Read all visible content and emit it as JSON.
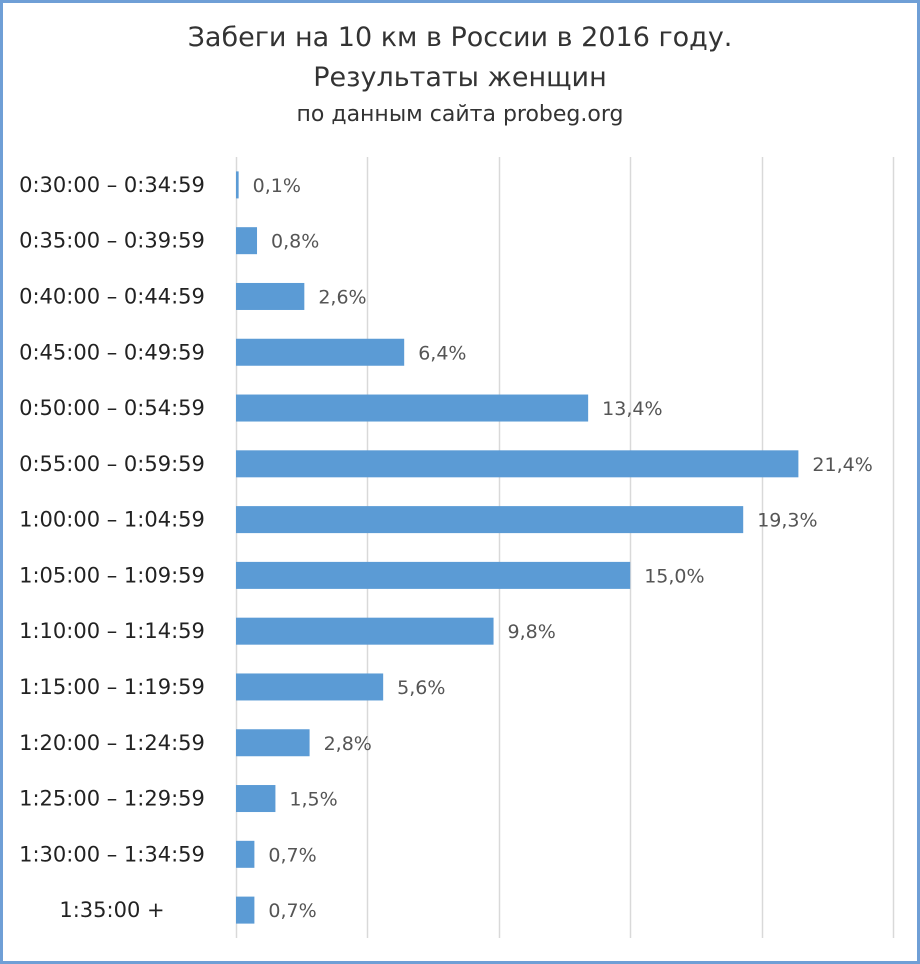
{
  "chart_data": {
    "type": "bar",
    "orientation": "horizontal",
    "title": "Забеги на 10 км в России в 2016 году.",
    "title_line2": "Результаты женщин",
    "subtitle": "по данным сайта probeg.org",
    "categories": [
      "0:30:00 – 0:34:59",
      "0:35:00 – 0:39:59",
      "0:40:00 – 0:44:59",
      "0:45:00 – 0:49:59",
      "0:50:00 – 0:54:59",
      "0:55:00 – 0:59:59",
      "1:00:00 – 1:04:59",
      "1:05:00 – 1:09:59",
      "1:10:00 – 1:14:59",
      "1:15:00 – 1:19:59",
      "1:20:00 – 1:24:59",
      "1:25:00 – 1:29:59",
      "1:30:00 – 1:34:59",
      "1:35:00 +"
    ],
    "values": [
      0.1,
      0.8,
      2.6,
      6.4,
      13.4,
      21.4,
      19.3,
      15.0,
      9.8,
      5.6,
      2.8,
      1.5,
      0.7,
      0.7
    ],
    "value_labels": [
      "0,1%",
      "0,8%",
      "2,6%",
      "6,4%",
      "13,4%",
      "21,4%",
      "19,3%",
      "15,0%",
      "9,8%",
      "5,6%",
      "2,8%",
      "1,5%",
      "0,7%",
      "0,7%"
    ],
    "xlim": [
      0,
      25
    ],
    "grid": true,
    "bar_color": "#5b9bd5",
    "grid_color": "#d9d9d9",
    "border_color": "#6f9fd6"
  }
}
